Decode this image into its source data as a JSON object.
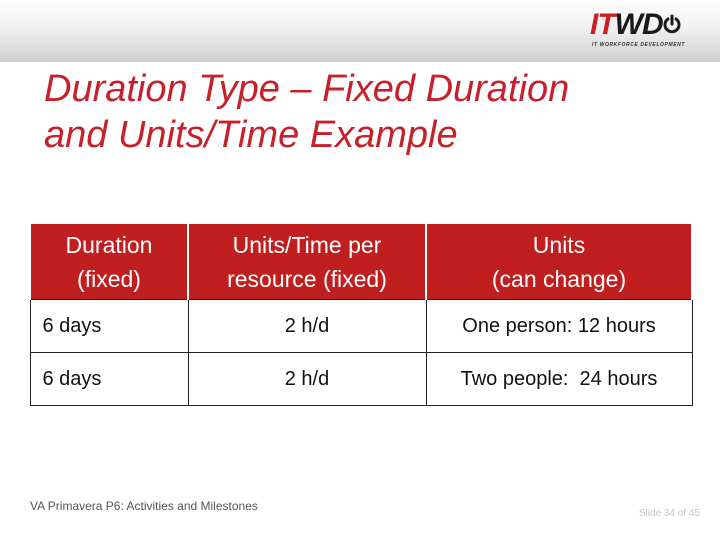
{
  "logo": {
    "mark_it": "IT",
    "mark_wd": "WD",
    "subtitle": "IT WORKFORCE DEVELOPMENT"
  },
  "slide": {
    "title_line1": "Duration Type – Fixed Duration",
    "title_line2": "and Units/Time Example"
  },
  "table": {
    "headers": [
      {
        "line1": "Duration",
        "line2": "(fixed)"
      },
      {
        "line1": "Units/Time per",
        "line2": "resource (fixed)"
      },
      {
        "line1": "Units",
        "line2": "(can change)"
      }
    ],
    "rows": [
      [
        "6 days",
        "2 h/d",
        "One person: 12 hours"
      ],
      [
        "6 days",
        "2 h/d",
        "Two people:  24 hours"
      ]
    ]
  },
  "footer": {
    "course": "VA Primavera P6: Activities and Milestones",
    "slide_number": "Slide 34 of 45"
  },
  "colors": {
    "accent_red": "#c11f1f",
    "title_red": "#c8202a"
  }
}
